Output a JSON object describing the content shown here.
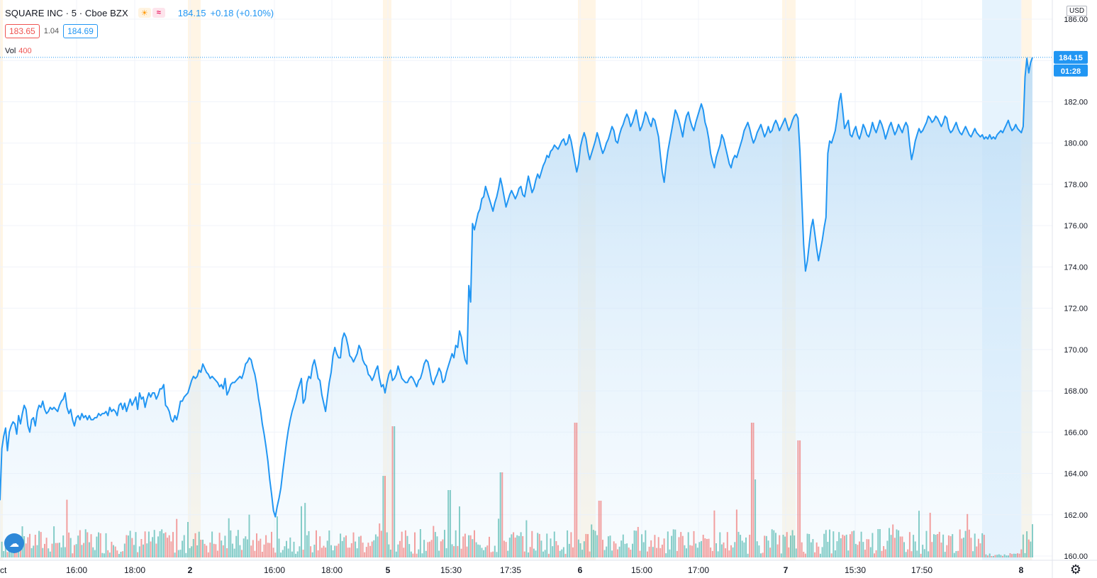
{
  "header": {
    "symbol": "SQUARE INC · 5 · Cboe BZX",
    "last_price": "184.15",
    "change": "+0.18 (+0.10%)",
    "sun_icon": "sun-icon",
    "wave_icon": "wave-icon"
  },
  "quotes": {
    "bid": "183.65",
    "spread": "1.04",
    "ask": "184.69"
  },
  "volume_legend": {
    "label": "Vol",
    "value": "400"
  },
  "currency": "USD",
  "price_tag": {
    "price": "184.15",
    "countdown": "01:28"
  },
  "colors": {
    "line": "#2196f3",
    "area_top": "#bbdcf6",
    "vol_up": "#26a69a",
    "vol_down": "#ef5350",
    "extended_hours": "#fff3e0",
    "grid": "#f0f3fa",
    "price_tag": "#2196f3"
  },
  "chart_data": {
    "type": "area",
    "title": "",
    "ylim": [
      159.7,
      186.2
    ],
    "yticks": [
      "160.00",
      "162.00",
      "164.00",
      "166.00",
      "168.00",
      "170.00",
      "172.00",
      "174.00",
      "176.00",
      "178.00",
      "180.00",
      "182.00",
      "184.00",
      "186.00"
    ],
    "xticks": [
      "ct",
      "16:00",
      "18:00",
      "2",
      "16:00",
      "18:00",
      "5",
      "15:30",
      "17:35",
      "6",
      "15:00",
      "17:00",
      "7",
      "15:30",
      "17:50",
      "8"
    ],
    "day_boundaries": [
      "2",
      "5",
      "6",
      "7",
      "8"
    ],
    "series": [
      {
        "values": [
          162.7,
          165.2,
          165.8,
          166.2,
          165.1,
          166,
          166.3,
          166.5,
          166.4,
          165.9,
          166.8,
          166.4,
          166.9,
          167.3,
          167.1,
          166.3,
          166,
          166.6,
          166.7,
          166.3,
          167.0,
          167.3,
          167.2,
          167.5,
          167.1,
          166.9,
          167.0,
          167.2,
          167.1,
          167.2,
          167.1,
          167.0,
          167.3,
          167.5,
          167.6,
          167.9,
          167.2,
          166.9,
          167.1,
          166.6,
          166.3,
          166.7,
          166.8,
          166.6,
          166.9,
          166.7,
          166.8,
          166.6,
          166.8,
          166.6,
          166.6,
          166.7,
          166.7,
          166.9,
          166.8,
          166.9,
          166.9,
          167.0,
          166.8,
          167.2,
          167.0,
          167.1,
          167.0,
          166.8,
          167.3,
          167.4,
          167.1,
          167.4,
          167.0,
          167.3,
          167.6,
          167.3,
          167.5,
          167.7,
          167.1,
          167.9,
          167.6,
          167.7,
          167.2,
          167.6,
          167.9,
          167.7,
          167.9,
          167.9,
          167.6,
          167.8,
          168.1,
          168.1,
          168.3,
          167.3,
          167.2,
          167.0,
          166.6,
          166.5,
          166.8,
          166.6,
          167.0,
          167.5,
          167.5,
          167.7,
          167.8,
          167.9,
          168.2,
          168.5,
          168.7,
          168.6,
          168.7,
          169.0,
          168.9,
          169.3,
          169.1,
          168.9,
          168.8,
          168.6,
          168.7,
          168.6,
          168.5,
          168.4,
          168.2,
          168.3,
          168.1,
          168.6,
          167.8,
          168.0,
          168.3,
          168.4,
          168.4,
          168.5,
          168.6,
          168.7,
          168.6,
          168.9,
          169.3,
          169.4,
          169.6,
          169.5,
          169.1,
          168.8,
          168.3,
          167.6,
          167.1,
          166.4,
          165.9,
          165.3,
          164.6,
          163.7,
          163.0,
          162.2,
          161.9,
          162.4,
          162.8,
          163.3,
          164.1,
          164.8,
          165.5,
          166.1,
          166.6,
          167.0,
          167.3,
          167.6,
          168.0,
          168.3,
          168.6,
          167.4,
          167.6,
          168.4,
          168.7,
          168.6,
          169.2,
          169.5,
          169.1,
          168.6,
          168.5,
          167.8,
          167.4,
          167.0,
          167.7,
          168.4,
          168.9,
          169.7,
          170.1,
          169.8,
          169.6,
          169.6,
          170.5,
          170.8,
          170.6,
          170.2,
          169.7,
          169.6,
          169.4,
          169.6,
          169.8,
          170.2,
          170.0,
          169.5,
          169.3,
          169.2,
          168.8,
          168.7,
          168.5,
          168.7,
          169.0,
          169.2,
          168.6,
          168.2,
          168.3,
          167.9,
          168.4,
          168.8,
          169.0,
          168.5,
          168.6,
          168.8,
          169.2,
          168.9,
          168.6,
          168.5,
          168.4,
          168.4,
          168.6,
          168.7,
          168.6,
          168.4,
          168.2,
          168.5,
          168.6,
          168.9,
          169.3,
          169.5,
          169.4,
          169.0,
          168.5,
          168.3,
          168.6,
          168.8,
          169.1,
          168.9,
          168.4,
          168.5,
          168.9,
          169.2,
          169.5,
          169.8,
          169.6,
          170.2,
          170.1,
          170.9,
          170.6,
          170.0,
          169.5,
          169.3,
          173.1,
          172.3,
          176.1,
          175.8,
          176.2,
          176.6,
          176.8,
          177.3,
          177.4,
          177.9,
          177.6,
          177.3,
          177.0,
          176.7,
          177.1,
          177.4,
          177.8,
          178.3,
          177.9,
          177.4,
          176.9,
          177.2,
          177.5,
          177.7,
          177.5,
          177.3,
          177.5,
          177.8,
          177.9,
          177.5,
          177.4,
          177.9,
          178.4,
          178.0,
          177.6,
          177.8,
          178.2,
          178.5,
          178.3,
          178.6,
          178.9,
          179.1,
          179.4,
          179.3,
          179.6,
          179.7,
          179.9,
          179.8,
          179.7,
          179.9,
          180.1,
          180.2,
          179.9,
          180.0,
          180.4,
          180.1,
          179.6,
          179.1,
          178.6,
          179.0,
          179.8,
          180.2,
          180.5,
          180.2,
          179.6,
          179.2,
          179.5,
          179.8,
          180.1,
          180.5,
          180.2,
          179.8,
          179.5,
          179.7,
          180.0,
          180.2,
          180.5,
          180.8,
          180.6,
          180.1,
          180.0,
          180.4,
          180.7,
          180.9,
          181.2,
          181.4,
          181.2,
          180.8,
          181.0,
          181.3,
          181.6,
          181.1,
          180.6,
          180.8,
          181.1,
          181.5,
          181.3,
          181.0,
          180.8,
          181.2,
          181.1,
          180.7,
          180.3,
          179.4,
          178.6,
          178.1,
          178.9,
          179.6,
          180.1,
          180.6,
          181.1,
          181.6,
          181.4,
          181.1,
          180.7,
          180.3,
          180.9,
          181.3,
          181.5,
          181.1,
          180.8,
          180.6,
          181.0,
          181.3,
          181.6,
          181.9,
          181.6,
          181.0,
          180.7,
          180.2,
          179.5,
          179.1,
          178.8,
          179.3,
          179.6,
          179.9,
          180.4,
          180.2,
          179.8,
          179.4,
          179.0,
          178.8,
          179.2,
          179.4,
          179.3,
          179.6,
          179.9,
          180.2,
          180.6,
          180.8,
          181.0,
          180.7,
          180.3,
          180.0,
          180.2,
          180.5,
          180.7,
          180.9,
          180.6,
          180.3,
          180.5,
          180.8,
          180.5,
          180.6,
          180.9,
          181.1,
          180.9,
          180.6,
          180.8,
          181.0,
          181.2,
          180.9,
          180.6,
          180.8,
          181.1,
          181.3,
          181.4,
          181.2,
          179.6,
          177.3,
          175.1,
          173.8,
          174.3,
          175.1,
          175.9,
          176.3,
          175.6,
          174.9,
          174.3,
          174.8,
          175.3,
          175.9,
          176.4,
          179.5,
          180.1,
          180.0,
          180.3,
          180.6,
          181.2,
          182.0,
          182.4,
          181.6,
          180.7,
          180.9,
          181.1,
          180.4,
          180.3,
          180.6,
          180.8,
          180.4,
          180.2,
          180.5,
          180.9,
          180.7,
          180.4,
          180.3,
          180.6,
          181.0,
          180.7,
          180.5,
          180.8,
          181.1,
          180.9,
          180.6,
          180.2,
          180.5,
          180.8,
          181.0,
          180.7,
          180.4,
          180.6,
          180.9,
          180.7,
          180.5,
          180.8,
          181.0,
          180.8,
          179.9,
          179.2,
          179.6,
          180.1,
          180.4,
          180.7,
          180.5,
          180.6,
          180.8,
          181.0,
          181.3,
          181.2,
          181.0,
          181.1,
          181.3,
          181.2,
          181.0,
          180.8,
          181.0,
          181.3,
          181.2,
          180.7,
          180.5,
          180.6,
          180.8,
          181.0,
          180.7,
          180.5,
          180.4,
          180.6,
          180.8,
          180.6,
          180.4,
          180.3,
          180.5,
          180.7,
          180.5,
          180.4,
          180.3,
          180.4,
          180.2,
          180.3,
          180.2,
          180.4,
          180.2,
          180.3,
          180.2,
          180.4,
          180.5,
          180.6,
          180.5,
          180.7,
          180.9,
          181.1,
          180.8,
          180.6,
          180.7,
          180.9,
          180.7,
          180.6,
          180.5,
          180.8,
          183.2,
          184.1,
          183.4,
          183.9,
          184.15
        ]
      }
    ],
    "volume": {
      "label": "Vol",
      "max": 400
    }
  }
}
